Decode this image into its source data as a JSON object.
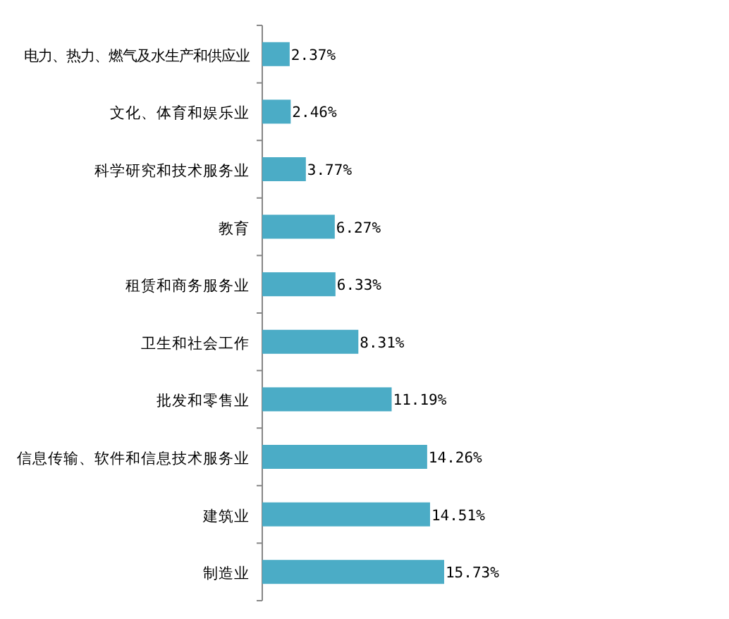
{
  "chart_data": {
    "type": "bar",
    "orientation": "horizontal",
    "categories": [
      "电力、热力、燃气及水生产和供应业",
      "文化、体育和娱乐业",
      "科学研究和技术服务业",
      "教育",
      "租赁和商务服务业",
      "卫生和社会工作",
      "批发和零售业",
      "信息传输、软件和信息技术服务业",
      "建筑业",
      "制造业"
    ],
    "values": [
      2.37,
      2.46,
      3.77,
      6.27,
      6.33,
      8.31,
      11.19,
      14.26,
      14.51,
      15.73
    ],
    "value_labels": [
      "2.37%",
      "2.46%",
      "3.77%",
      "6.27%",
      "6.33%",
      "8.31%",
      "11.19%",
      "14.26%",
      "14.51%",
      "15.73%"
    ],
    "color": "#4bacc6"
  }
}
